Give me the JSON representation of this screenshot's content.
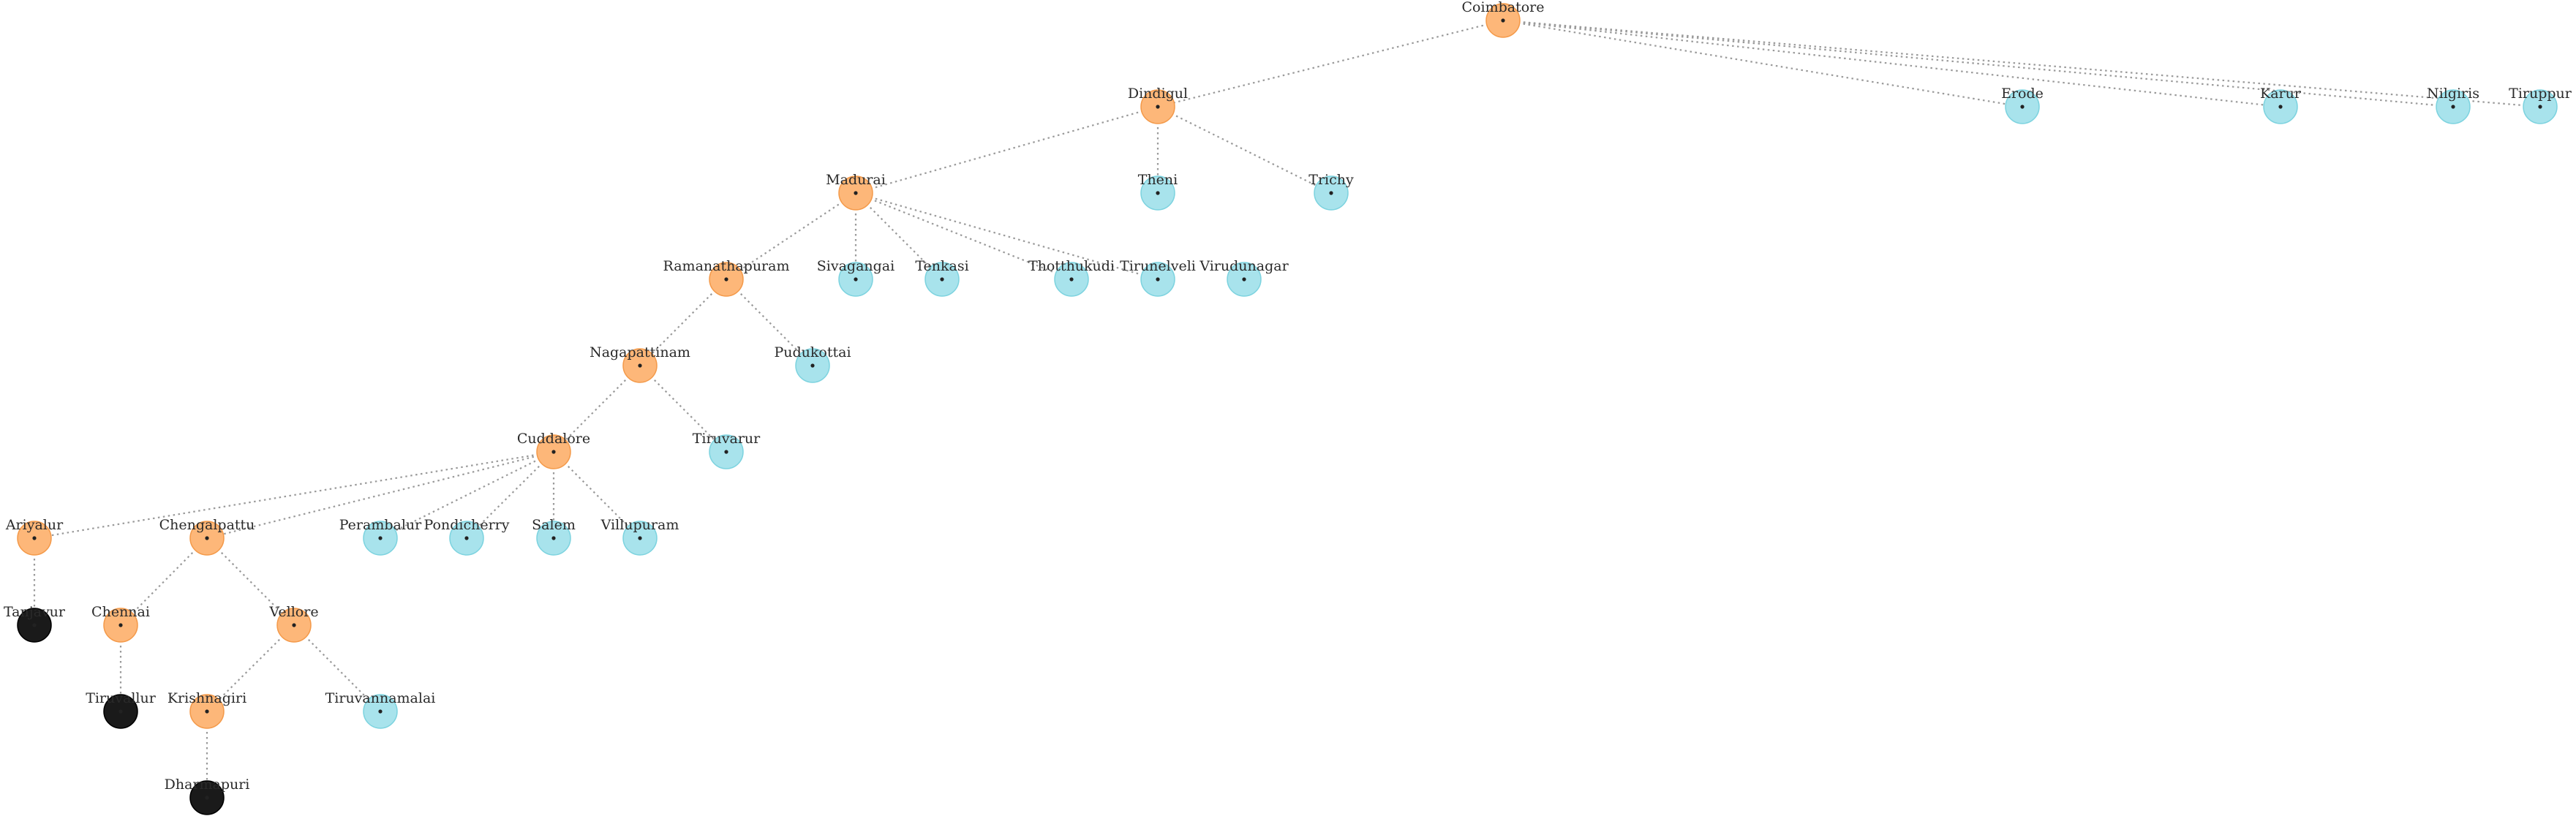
{
  "diagram": {
    "type": "tree",
    "colors": {
      "internal": "#fdb779",
      "leaf": "#a8e3ec",
      "terminal": "#1a1a1a",
      "edge": "#9a9a9a"
    },
    "nodes": [
      {
        "id": "coimbatore",
        "label": "Coimbatore",
        "kind": "internal"
      },
      {
        "id": "dindigul",
        "label": "Dindigul",
        "kind": "internal"
      },
      {
        "id": "erode",
        "label": "Erode",
        "kind": "leaf"
      },
      {
        "id": "karur",
        "label": "Karur",
        "kind": "leaf"
      },
      {
        "id": "nilgiris",
        "label": "Nilgiris",
        "kind": "leaf"
      },
      {
        "id": "tiruppur",
        "label": "Tiruppur",
        "kind": "leaf"
      },
      {
        "id": "madurai",
        "label": "Madurai",
        "kind": "internal"
      },
      {
        "id": "theni",
        "label": "Theni",
        "kind": "leaf"
      },
      {
        "id": "trichy",
        "label": "Trichy",
        "kind": "leaf"
      },
      {
        "id": "ramanathapuram",
        "label": "Ramanathapuram",
        "kind": "internal"
      },
      {
        "id": "sivagangai",
        "label": "Sivagangai",
        "kind": "leaf"
      },
      {
        "id": "tenkasi",
        "label": "Tenkasi",
        "kind": "leaf"
      },
      {
        "id": "thothukudi",
        "label": "Thotthukudi",
        "kind": "leaf"
      },
      {
        "id": "tirunelveli",
        "label": "Tirunelveli",
        "kind": "leaf"
      },
      {
        "id": "virudunagar",
        "label": "Virudunagar",
        "kind": "leaf"
      },
      {
        "id": "nagapattinam",
        "label": "Nagapattinam",
        "kind": "internal"
      },
      {
        "id": "pudukottai",
        "label": "Pudukottai",
        "kind": "leaf"
      },
      {
        "id": "cuddalore",
        "label": "Cuddalore",
        "kind": "internal"
      },
      {
        "id": "tiruvarur",
        "label": "Tiruvarur",
        "kind": "leaf"
      },
      {
        "id": "ariyalur",
        "label": "Ariyalur",
        "kind": "internal"
      },
      {
        "id": "chengalpattu",
        "label": "Chengalpattu",
        "kind": "internal"
      },
      {
        "id": "perambalur",
        "label": "Perambalur",
        "kind": "leaf"
      },
      {
        "id": "pondicherry",
        "label": "Pondicherry",
        "kind": "leaf"
      },
      {
        "id": "salem",
        "label": "Salem",
        "kind": "leaf"
      },
      {
        "id": "villupuram",
        "label": "Villupuram",
        "kind": "leaf"
      },
      {
        "id": "tanjavur",
        "label": "Tanjavur",
        "kind": "terminal"
      },
      {
        "id": "chennai",
        "label": "Chennai",
        "kind": "internal"
      },
      {
        "id": "vellore",
        "label": "Vellore",
        "kind": "internal"
      },
      {
        "id": "tiruvallur",
        "label": "Tiruvallur",
        "kind": "terminal"
      },
      {
        "id": "krishnagiri",
        "label": "Krishnagiri",
        "kind": "internal"
      },
      {
        "id": "tiruvannamalai",
        "label": "Tiruvannamalai",
        "kind": "leaf"
      },
      {
        "id": "dharmapuri",
        "label": "Dharmapuri",
        "kind": "terminal"
      }
    ],
    "edges": [
      [
        "coimbatore",
        "dindigul"
      ],
      [
        "coimbatore",
        "erode"
      ],
      [
        "coimbatore",
        "karur"
      ],
      [
        "coimbatore",
        "nilgiris"
      ],
      [
        "coimbatore",
        "tiruppur"
      ],
      [
        "dindigul",
        "madurai"
      ],
      [
        "dindigul",
        "theni"
      ],
      [
        "dindigul",
        "trichy"
      ],
      [
        "madurai",
        "ramanathapuram"
      ],
      [
        "madurai",
        "sivagangai"
      ],
      [
        "madurai",
        "tenkasi"
      ],
      [
        "madurai",
        "thothukudi"
      ],
      [
        "madurai",
        "tirunelveli"
      ],
      [
        "ramanathapuram",
        "nagapattinam"
      ],
      [
        "ramanathapuram",
        "pudukottai"
      ],
      [
        "nagapattinam",
        "cuddalore"
      ],
      [
        "nagapattinam",
        "tiruvarur"
      ],
      [
        "cuddalore",
        "ariyalur"
      ],
      [
        "cuddalore",
        "chengalpattu"
      ],
      [
        "cuddalore",
        "perambalur"
      ],
      [
        "cuddalore",
        "pondicherry"
      ],
      [
        "cuddalore",
        "salem"
      ],
      [
        "cuddalore",
        "villupuram"
      ],
      [
        "ariyalur",
        "tanjavur"
      ],
      [
        "chengalpattu",
        "chennai"
      ],
      [
        "chengalpattu",
        "vellore"
      ],
      [
        "chennai",
        "tiruvallur"
      ],
      [
        "vellore",
        "krishnagiri"
      ],
      [
        "vellore",
        "tiruvannamalai"
      ],
      [
        "krishnagiri",
        "dharmapuri"
      ]
    ]
  }
}
